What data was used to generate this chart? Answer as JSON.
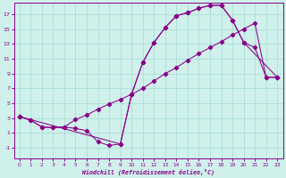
{
  "xlabel": "Windchill (Refroidissement éolien,°C)",
  "bg_color": "#cff0eb",
  "line_color": "#8b008b",
  "grid_color": "#aaddd6",
  "xlim": [
    -0.5,
    23.5
  ],
  "ylim": [
    -2.5,
    18.5
  ],
  "xticks": [
    0,
    1,
    2,
    3,
    4,
    5,
    6,
    7,
    8,
    9,
    10,
    11,
    12,
    13,
    14,
    15,
    16,
    17,
    18,
    19,
    20,
    21,
    22,
    23
  ],
  "yticks": [
    -1,
    1,
    3,
    5,
    7,
    9,
    11,
    13,
    15,
    17
  ],
  "line1_x": [
    0,
    1,
    2,
    3,
    4,
    5,
    6,
    7,
    8,
    9,
    10,
    11,
    12,
    13,
    14,
    15,
    16,
    17,
    18,
    19,
    20,
    21,
    22,
    23
  ],
  "line1_y": [
    3.2,
    2.7,
    1.8,
    1.7,
    1.8,
    1.6,
    1.3,
    -0.2,
    -0.7,
    -0.5,
    6.2,
    10.5,
    13.2,
    15.2,
    16.8,
    17.2,
    17.8,
    18.2,
    18.2,
    16.2,
    13.2,
    12.5,
    8.5,
    8.5
  ],
  "line2_x": [
    0,
    1,
    2,
    3,
    4,
    5,
    6,
    7,
    8,
    9,
    10,
    11,
    12,
    13,
    14,
    15,
    16,
    17,
    18,
    19,
    20,
    21,
    22,
    23
  ],
  "line2_y": [
    3.2,
    2.7,
    1.8,
    1.7,
    1.8,
    2.8,
    3.4,
    4.2,
    4.9,
    5.5,
    6.2,
    7.0,
    8.0,
    9.0,
    9.8,
    10.8,
    11.7,
    12.5,
    13.3,
    14.2,
    15.0,
    15.8,
    8.5,
    8.5
  ],
  "line3_x": [
    0,
    9,
    10,
    11,
    12,
    13,
    14,
    15,
    16,
    17,
    18,
    19,
    20,
    23
  ],
  "line3_y": [
    3.2,
    -0.5,
    6.2,
    10.5,
    13.2,
    15.2,
    16.8,
    17.2,
    17.8,
    18.2,
    18.2,
    16.2,
    13.2,
    8.5
  ]
}
